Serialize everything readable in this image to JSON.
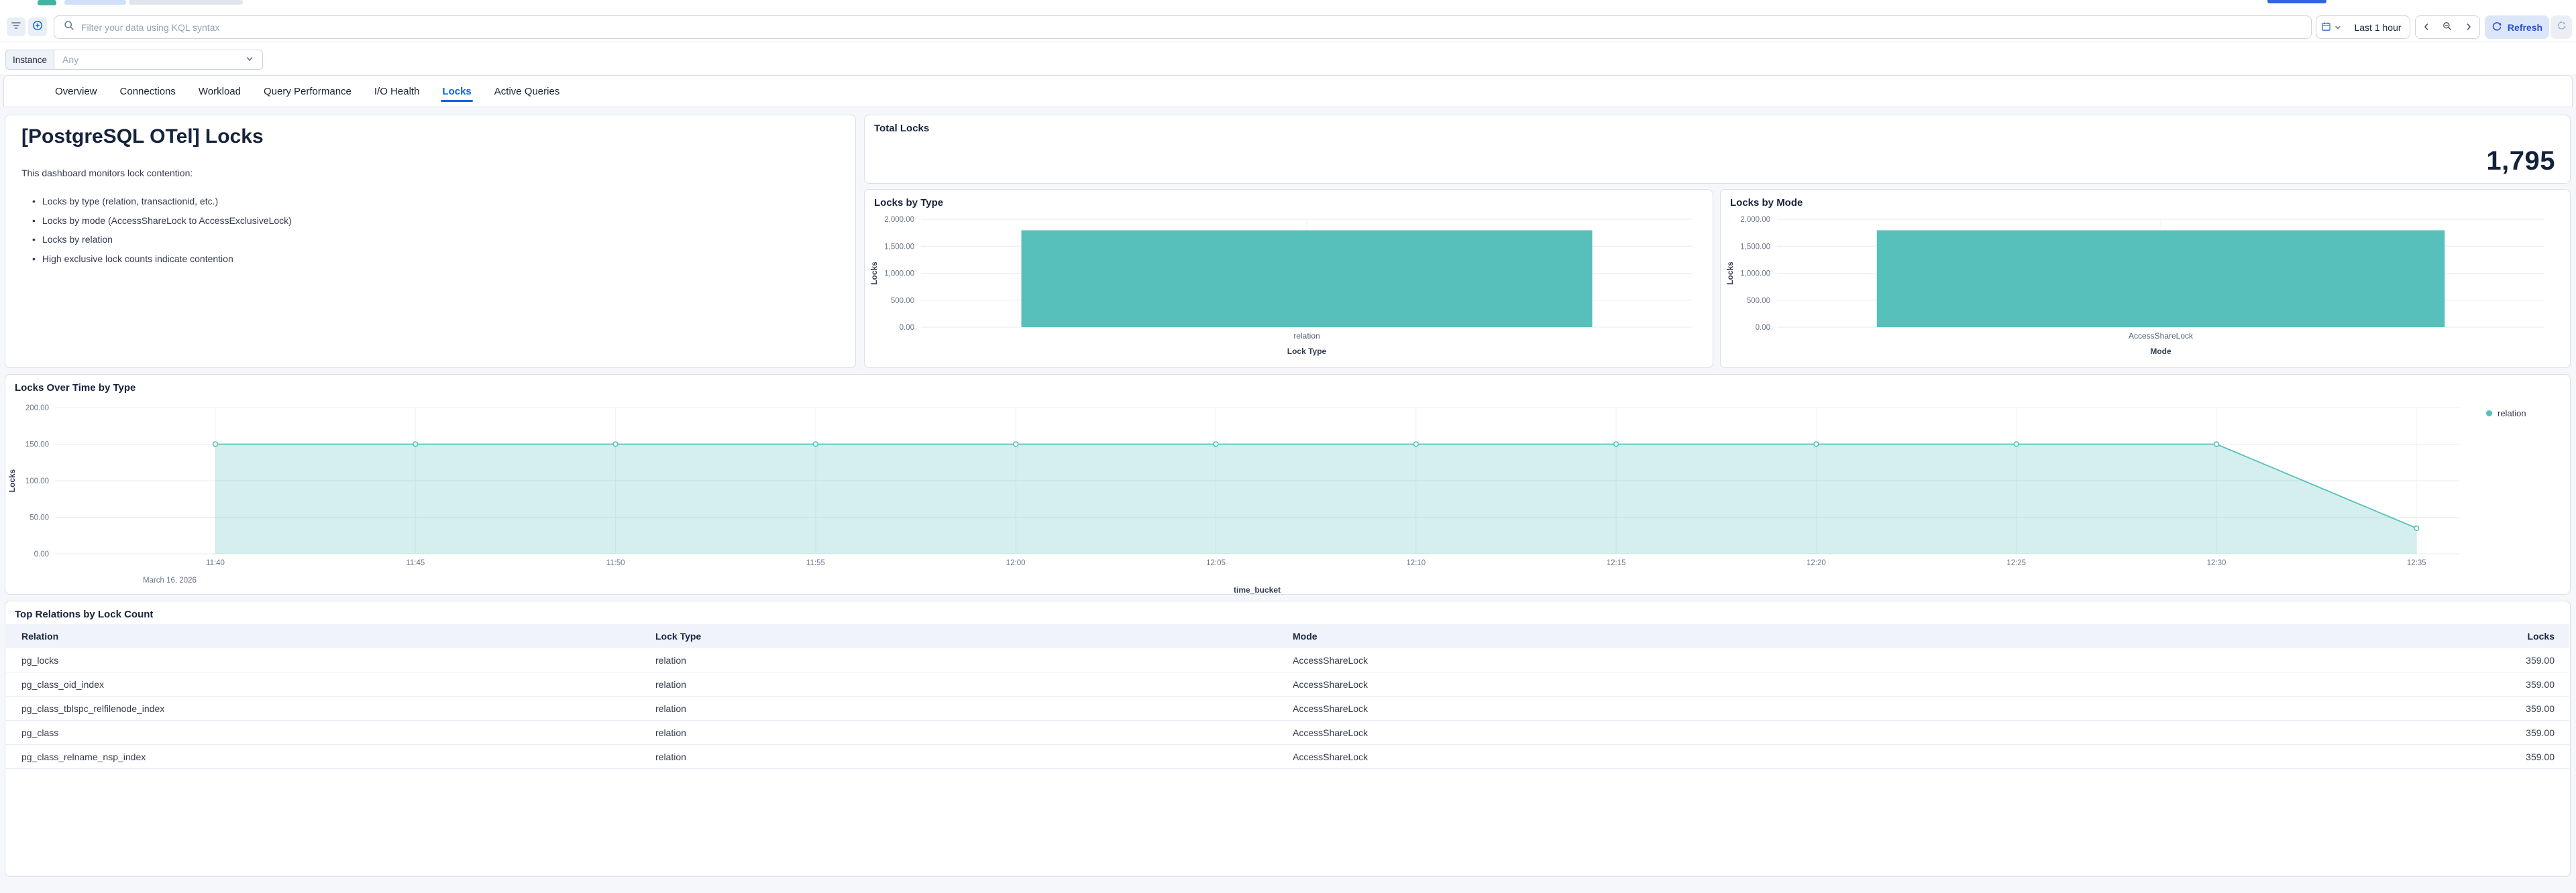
{
  "colors": {
    "teal": "#57c0ba",
    "teal_fill_opacity": 0.26,
    "accent_blue": "#0b64dd",
    "refresh_blue": "#2a50c4",
    "grid": "#e7ebf3",
    "tick_text": "#6b7587",
    "axis_title_text": "#333d4f"
  },
  "header": {
    "search": {
      "placeholder": "Filter your data using KQL syntax"
    },
    "time_picker": {
      "range_label": "Last 1 hour",
      "refresh_label": "Refresh"
    },
    "filter_bar": {
      "instance_label": "Instance",
      "instance_value": "Any"
    }
  },
  "tabs": {
    "items": [
      "Overview",
      "Connections",
      "Workload",
      "Query Performance",
      "I/O Health",
      "Locks",
      "Active Queries"
    ],
    "active": "Locks"
  },
  "markdown_panel": {
    "title": "[PostgreSQL OTel] Locks",
    "intro": "This dashboard monitors lock contention:",
    "bullets": [
      "Locks by type (relation, transactionid, etc.)",
      "Locks by mode (AccessShareLock to AccessExclusiveLock)",
      "Locks by relation",
      "High exclusive lock counts indicate contention"
    ]
  },
  "metric_panel": {
    "title": "Total Locks",
    "value": "1,795"
  },
  "chart_data": [
    {
      "id": "locks-by-type",
      "type": "bar",
      "title": "Locks by Type",
      "categories": [
        "relation"
      ],
      "values": [
        1795
      ],
      "xlabel": "Lock Type",
      "ylabel": "Locks",
      "ylim": [
        0,
        2000
      ],
      "ytick_labels": [
        "0.00",
        "500.00",
        "1,000.00",
        "1,500.00",
        "2,000.00"
      ],
      "grid": true,
      "bar_color": "#57c0ba"
    },
    {
      "id": "locks-by-mode",
      "type": "bar",
      "title": "Locks by Mode",
      "categories": [
        "AccessShareLock"
      ],
      "values": [
        1795
      ],
      "xlabel": "Mode",
      "ylabel": "Locks",
      "ylim": [
        0,
        2000
      ],
      "ytick_labels": [
        "0.00",
        "500.00",
        "1,000.00",
        "1,500.00",
        "2,000.00"
      ],
      "grid": true,
      "bar_color": "#57c0ba"
    },
    {
      "id": "locks-over-time",
      "type": "area",
      "title": "Locks Over Time by Type",
      "x": [
        "11:40",
        "11:45",
        "11:50",
        "11:55",
        "12:00",
        "12:05",
        "12:10",
        "12:15",
        "12:20",
        "12:25",
        "12:30",
        "12:35"
      ],
      "series": [
        {
          "name": "relation",
          "values": [
            150,
            150,
            150,
            150,
            150,
            150,
            150,
            150,
            150,
            150,
            150,
            35
          ],
          "color": "#57c0ba"
        }
      ],
      "xlabel": "time_bucket",
      "ylabel": "Locks",
      "ylim": [
        0,
        200
      ],
      "ytick_labels": [
        "0.00",
        "50.00",
        "100.00",
        "150.00",
        "200.00"
      ],
      "x_context_label": "March 16, 2026",
      "grid": true,
      "legend": {
        "position": "right",
        "items": [
          "relation"
        ]
      }
    }
  ],
  "table_panel": {
    "title": "Top Relations by Lock Count",
    "columns": [
      "Relation",
      "Lock Type",
      "Mode",
      "Locks"
    ],
    "rows": [
      [
        "pg_locks",
        "relation",
        "AccessShareLock",
        "359.00"
      ],
      [
        "pg_class_oid_index",
        "relation",
        "AccessShareLock",
        "359.00"
      ],
      [
        "pg_class_tblspc_relfilenode_index",
        "relation",
        "AccessShareLock",
        "359.00"
      ],
      [
        "pg_class",
        "relation",
        "AccessShareLock",
        "359.00"
      ],
      [
        "pg_class_relname_nsp_index",
        "relation",
        "AccessShareLock",
        "359.00"
      ]
    ]
  }
}
